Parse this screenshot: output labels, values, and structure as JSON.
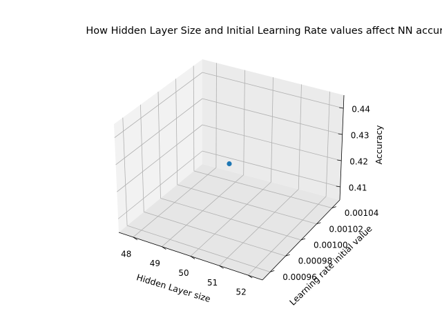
{
  "chart_data": {
    "type": "scatter",
    "projection": "3d",
    "title": "How Hidden Layer Size and Initial Learning Rate values affect NN accuracy",
    "xlabel": "Hidden Layer size",
    "ylabel": "Learning rate initial value",
    "zlabel": "Accuracy",
    "xticks": [
      "48",
      "49",
      "50",
      "51",
      "52"
    ],
    "yticks": [
      "0.00096",
      "0.00098",
      "0.00100",
      "0.00102",
      "0.00104"
    ],
    "zticks": [
      "0.41",
      "0.42",
      "0.43",
      "0.44"
    ],
    "xlim": [
      47.5,
      52.5
    ],
    "ylim": [
      0.00095,
      0.00105
    ],
    "zlim": [
      0.405,
      0.445
    ],
    "grid": true,
    "points": [
      {
        "x": 50,
        "y": 0.001,
        "z": 0.425
      }
    ],
    "marker_color": "#1f77b4"
  }
}
